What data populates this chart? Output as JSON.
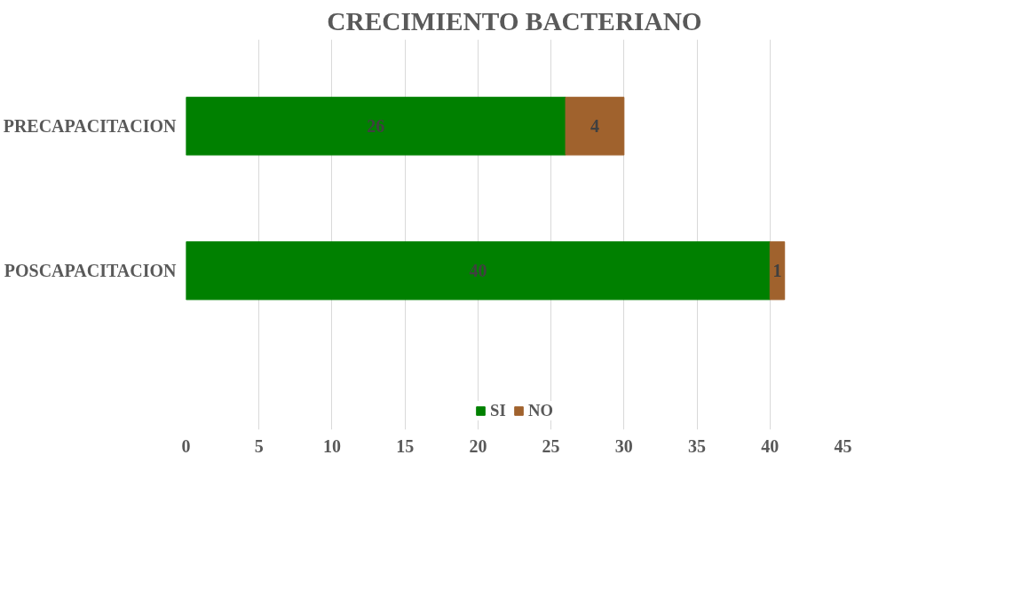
{
  "chart_data": {
    "type": "bar",
    "orientation": "horizontal",
    "stacked": true,
    "title": "CRECIMIENTO BACTERIANO",
    "categories": [
      "PRECAPACITACION",
      "POSCAPACITACION"
    ],
    "series": [
      {
        "name": "SI",
        "color": "#008000",
        "values": [
          26,
          40
        ]
      },
      {
        "name": "NO",
        "color": "#a0622d",
        "values": [
          4,
          1
        ]
      }
    ],
    "xlim": [
      0,
      45
    ],
    "xticks": [
      0,
      5,
      10,
      15,
      20,
      25,
      30,
      35,
      40,
      45
    ],
    "grid": "x",
    "legend": "bottom",
    "data_labels": true
  }
}
